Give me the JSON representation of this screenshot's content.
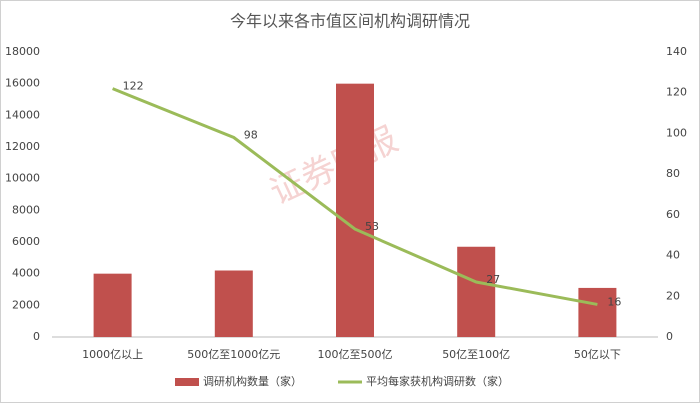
{
  "chart_data": {
    "type": "combo",
    "title": "今年以来各市值区间机构调研情况",
    "watermark": "证券时报",
    "categories": [
      "1000亿以上",
      "500亿至1000亿元",
      "100亿至500亿",
      "50亿至100亿",
      "50亿以下"
    ],
    "series": [
      {
        "name": "调研机构数量（家）",
        "type": "bar",
        "color": "#c0504d",
        "values": [
          4000,
          4200,
          16000,
          5700,
          3100
        ]
      },
      {
        "name": "平均每家获机构调研数（家）",
        "type": "line",
        "axis": "y2",
        "color": "#9bbb59",
        "values": [
          122,
          98,
          53,
          27,
          16
        ],
        "data_labels": true
      }
    ],
    "ylim": [
      0,
      18000
    ],
    "yticks": [
      0,
      2000,
      4000,
      6000,
      8000,
      10000,
      12000,
      14000,
      16000,
      18000
    ],
    "y2lim": [
      0,
      140
    ],
    "y2ticks": [
      0,
      20,
      40,
      60,
      80,
      100,
      120,
      140
    ],
    "grid": false,
    "legend": "bottom"
  }
}
